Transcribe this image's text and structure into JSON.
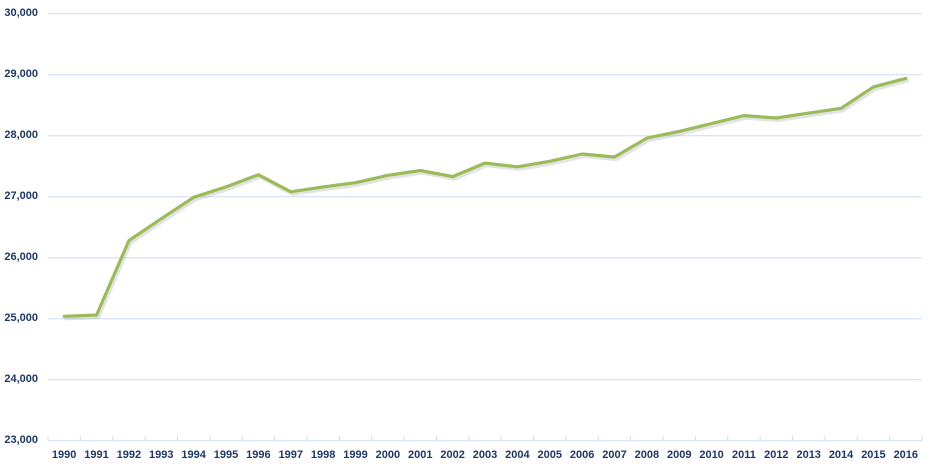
{
  "chart_data": {
    "type": "line",
    "title": "",
    "xlabel": "",
    "ylabel": "",
    "categories": [
      "1990",
      "1991",
      "1992",
      "1993",
      "1994",
      "1995",
      "1996",
      "1997",
      "1998",
      "1999",
      "2000",
      "2001",
      "2002",
      "2003",
      "2004",
      "2005",
      "2006",
      "2007",
      "2008",
      "2009",
      "2010",
      "2011",
      "2012",
      "2013",
      "2014",
      "2015",
      "2016"
    ],
    "series": [
      {
        "name": "",
        "values": [
          25040,
          25060,
          26280,
          26640,
          26990,
          27160,
          27360,
          27080,
          27160,
          27230,
          27350,
          27430,
          27330,
          27550,
          27490,
          27580,
          27700,
          27650,
          27960,
          28070,
          28200,
          28330,
          28290,
          28370,
          28450,
          28800,
          28940
        ]
      }
    ],
    "ylim": [
      23000,
      30000
    ],
    "ytick_interval": 1000,
    "ytick_labels": [
      "30,000",
      "29,000",
      "28,000",
      "27,000",
      "26,000",
      "25,000",
      "24,000",
      "23,000"
    ],
    "grid": true,
    "legend": "none",
    "colors": {
      "line": "#9BBB59",
      "line_shadow": "#9a9a9a",
      "gridline": "#CDDEF3",
      "axis_label": "#1F3864",
      "background": "#FFFFFF"
    }
  }
}
